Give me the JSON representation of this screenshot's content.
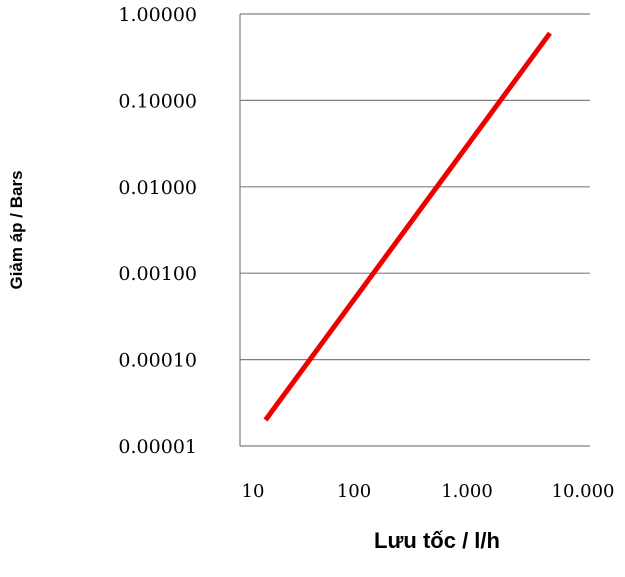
{
  "chart_data": {
    "type": "line",
    "title": "",
    "xlabel": "Lưu tốc / l/h",
    "ylabel": "Giảm áp / Bars",
    "x_scale": "log",
    "y_scale": "log",
    "xlim": [
      10,
      10000
    ],
    "ylim": [
      1e-05,
      1
    ],
    "x_tick_labels": [
      "10",
      "100",
      "1.000",
      "10.000"
    ],
    "y_tick_labels": [
      "1.00000",
      "0.10000",
      "0.01000",
      "0.00100",
      "0.00010",
      "0.00001"
    ],
    "grid": "horizontal",
    "legend": "none",
    "series": [
      {
        "color": "#ee0000",
        "x": [
          13,
          5000
        ],
        "y": [
          2e-05,
          0.6
        ]
      }
    ]
  }
}
